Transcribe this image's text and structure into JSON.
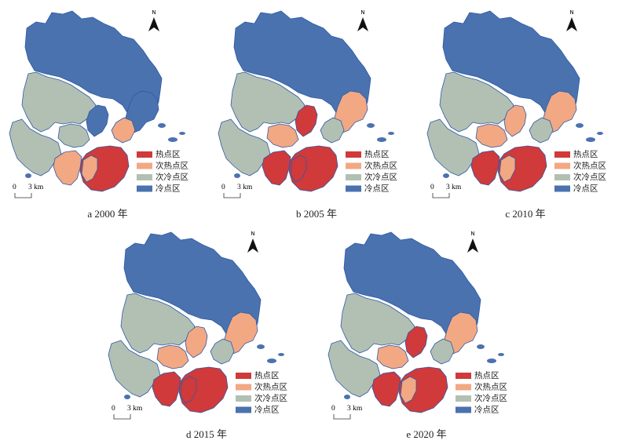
{
  "north_label": "N",
  "scale": {
    "start": "0",
    "end": "3 km"
  },
  "legend": [
    {
      "label": "热点区",
      "color": "#d03a3a"
    },
    {
      "label": "次热点区",
      "color": "#f2a883"
    },
    {
      "label": "次冷点区",
      "color": "#b2c0b3"
    },
    {
      "label": "冷点区",
      "color": "#4a72ae"
    }
  ],
  "colors": {
    "hot": "#d03a3a",
    "subhot": "#f2a883",
    "subcold": "#b2c0b3",
    "cold": "#4a72ae",
    "outline": "#2f59a6"
  },
  "panels": [
    {
      "caption": "a 2000 年",
      "zones": {
        "nw": "subcold",
        "bay": "cold",
        "east": "cold",
        "centre": "subcold",
        "centre_east": "subhot",
        "sw": "subcold",
        "south": "subhot",
        "island": "hot",
        "island_west": "subhot"
      }
    },
    {
      "caption": "b 2005 年",
      "zones": {
        "nw": "subcold",
        "bay": "hot",
        "east": "subhot",
        "centre": "subhot",
        "centre_east": "subcold",
        "sw": "subcold",
        "south": "hot",
        "island": "hot",
        "island_west": "hot"
      }
    },
    {
      "caption": "c 2010 年",
      "zones": {
        "nw": "subcold",
        "bay": "subhot",
        "east": "subhot",
        "centre": "subhot",
        "centre_east": "subcold",
        "sw": "subcold",
        "south": "hot",
        "island": "hot",
        "island_west": "subhot"
      }
    },
    {
      "caption": "d 2015 年",
      "zones": {
        "nw": "subcold",
        "bay": "subhot",
        "east": "subhot",
        "centre": "subhot",
        "centre_east": "subcold",
        "sw": "subcold",
        "south": "hot",
        "island": "hot",
        "island_west": "hot"
      }
    },
    {
      "caption": "e 2020 年",
      "zones": {
        "nw": "subcold",
        "bay": "hot",
        "east": "subhot",
        "centre": "subhot",
        "centre_east": "subcold",
        "sw": "subcold",
        "south": "hot",
        "island": "hot",
        "island_west": "subhot"
      }
    }
  ]
}
